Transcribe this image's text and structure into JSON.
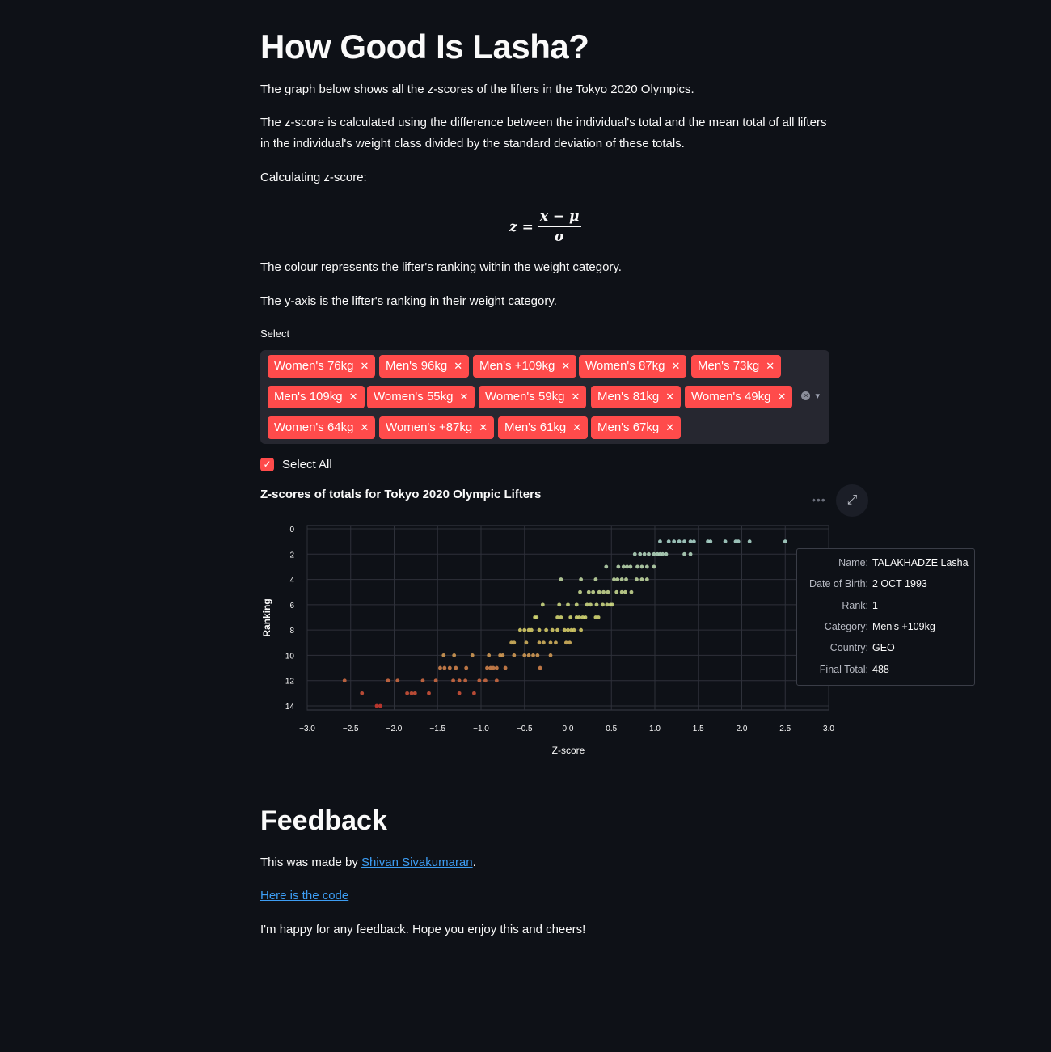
{
  "header": {
    "title": "How Good Is Lasha?"
  },
  "intro": {
    "p1": "The graph below shows all the z-scores of the lifters in the Tokyo 2020 Olympics.",
    "p2": "The z-score is calculated using the difference between the individual's total and the mean total of all lifters in the individual's weight class divided by the standard deviation of these totals.",
    "p3": "Calculating z-score:",
    "formula": {
      "lhs": "z =",
      "numerator": "x − μ",
      "denominator": "σ"
    },
    "p4": "The colour represents the lifter's ranking within the weight category.",
    "p5": "The y-axis is the lifter's ranking in their weight category."
  },
  "select": {
    "label": "Select",
    "tags": [
      "Women's 76kg",
      "Men's 96kg",
      "Men's +109kg",
      "Women's 87kg",
      "Men's 73kg",
      "Men's 109kg",
      "Women's 55kg",
      "Women's 59kg",
      "Men's 81kg",
      "Women's 49kg",
      "Women's 64kg",
      "Women's +87kg",
      "Men's 61kg",
      "Men's 67kg"
    ],
    "remove_glyph": "✕",
    "clear_glyph": "×",
    "dropdown_glyph": "▾"
  },
  "select_all": {
    "label": "Select All",
    "checked": true,
    "check_glyph": "✓"
  },
  "chart_header": {
    "menu_glyph": "•••",
    "expand_glyph": "⤢"
  },
  "chart_data": {
    "type": "scatter",
    "title": "Z-scores of totals for Tokyo 2020 Olympic Lifters",
    "xlabel": "Z-score",
    "ylabel": "Ranking",
    "xlim": [
      -3.0,
      3.0
    ],
    "ylim": [
      0,
      14
    ],
    "y_reversed": true,
    "x_ticks": [
      "−3.0",
      "−2.5",
      "−2.0",
      "−1.5",
      "−1.0",
      "−0.5",
      "0.0",
      "0.5",
      "1.0",
      "1.5",
      "2.0",
      "2.5",
      "3.0"
    ],
    "y_ticks": [
      "0",
      "2",
      "4",
      "6",
      "8",
      "10",
      "12",
      "14"
    ],
    "grid": true,
    "color_scale": {
      "low_rank": "#a9d3c8",
      "mid_rank": "#d3d46a",
      "high_rank": "#c8392f"
    },
    "points": [
      {
        "x": 1.06,
        "y": 1
      },
      {
        "x": 1.16,
        "y": 1
      },
      {
        "x": 1.22,
        "y": 1
      },
      {
        "x": 1.28,
        "y": 1
      },
      {
        "x": 1.34,
        "y": 1
      },
      {
        "x": 1.41,
        "y": 1
      },
      {
        "x": 1.45,
        "y": 1
      },
      {
        "x": 1.61,
        "y": 1
      },
      {
        "x": 1.64,
        "y": 1
      },
      {
        "x": 1.81,
        "y": 1
      },
      {
        "x": 1.93,
        "y": 1
      },
      {
        "x": 1.96,
        "y": 1
      },
      {
        "x": 2.09,
        "y": 1
      },
      {
        "x": 2.5,
        "y": 1
      },
      {
        "x": 0.77,
        "y": 2
      },
      {
        "x": 0.83,
        "y": 2
      },
      {
        "x": 0.88,
        "y": 2
      },
      {
        "x": 0.93,
        "y": 2
      },
      {
        "x": 0.99,
        "y": 2
      },
      {
        "x": 1.03,
        "y": 2
      },
      {
        "x": 1.06,
        "y": 2
      },
      {
        "x": 1.09,
        "y": 2
      },
      {
        "x": 1.13,
        "y": 2
      },
      {
        "x": 1.34,
        "y": 2
      },
      {
        "x": 1.41,
        "y": 2
      },
      {
        "x": 0.44,
        "y": 3
      },
      {
        "x": 0.58,
        "y": 3
      },
      {
        "x": 0.64,
        "y": 3
      },
      {
        "x": 0.68,
        "y": 3
      },
      {
        "x": 0.72,
        "y": 3
      },
      {
        "x": 0.8,
        "y": 3
      },
      {
        "x": 0.85,
        "y": 3
      },
      {
        "x": 0.91,
        "y": 3
      },
      {
        "x": 0.99,
        "y": 3
      },
      {
        "x": -0.08,
        "y": 4
      },
      {
        "x": 0.15,
        "y": 4
      },
      {
        "x": 0.32,
        "y": 4
      },
      {
        "x": 0.53,
        "y": 4
      },
      {
        "x": 0.57,
        "y": 4
      },
      {
        "x": 0.62,
        "y": 4
      },
      {
        "x": 0.67,
        "y": 4
      },
      {
        "x": 0.79,
        "y": 4
      },
      {
        "x": 0.85,
        "y": 4
      },
      {
        "x": 0.91,
        "y": 4
      },
      {
        "x": 0.14,
        "y": 5
      },
      {
        "x": 0.24,
        "y": 5
      },
      {
        "x": 0.29,
        "y": 5
      },
      {
        "x": 0.36,
        "y": 5
      },
      {
        "x": 0.41,
        "y": 5
      },
      {
        "x": 0.46,
        "y": 5
      },
      {
        "x": 0.56,
        "y": 5
      },
      {
        "x": 0.62,
        "y": 5
      },
      {
        "x": 0.66,
        "y": 5
      },
      {
        "x": 0.73,
        "y": 5
      },
      {
        "x": -0.29,
        "y": 6
      },
      {
        "x": -0.1,
        "y": 6
      },
      {
        "x": 0.0,
        "y": 6
      },
      {
        "x": 0.1,
        "y": 6
      },
      {
        "x": 0.22,
        "y": 6
      },
      {
        "x": 0.26,
        "y": 6
      },
      {
        "x": 0.33,
        "y": 6
      },
      {
        "x": 0.4,
        "y": 6
      },
      {
        "x": 0.45,
        "y": 6
      },
      {
        "x": 0.49,
        "y": 6
      },
      {
        "x": 0.51,
        "y": 6
      },
      {
        "x": -0.38,
        "y": 7
      },
      {
        "x": -0.36,
        "y": 7
      },
      {
        "x": -0.12,
        "y": 7
      },
      {
        "x": -0.08,
        "y": 7
      },
      {
        "x": 0.03,
        "y": 7
      },
      {
        "x": 0.1,
        "y": 7
      },
      {
        "x": 0.13,
        "y": 7
      },
      {
        "x": 0.17,
        "y": 7
      },
      {
        "x": 0.2,
        "y": 7
      },
      {
        "x": 0.32,
        "y": 7
      },
      {
        "x": 0.35,
        "y": 7
      },
      {
        "x": -0.55,
        "y": 8
      },
      {
        "x": -0.5,
        "y": 8
      },
      {
        "x": -0.45,
        "y": 8
      },
      {
        "x": -0.42,
        "y": 8
      },
      {
        "x": -0.33,
        "y": 8
      },
      {
        "x": -0.25,
        "y": 8
      },
      {
        "x": -0.18,
        "y": 8
      },
      {
        "x": -0.12,
        "y": 8
      },
      {
        "x": -0.04,
        "y": 8
      },
      {
        "x": 0.0,
        "y": 8
      },
      {
        "x": 0.04,
        "y": 8
      },
      {
        "x": 0.07,
        "y": 8
      },
      {
        "x": 0.15,
        "y": 8
      },
      {
        "x": -0.65,
        "y": 9
      },
      {
        "x": -0.62,
        "y": 9
      },
      {
        "x": -0.48,
        "y": 9
      },
      {
        "x": -0.33,
        "y": 9
      },
      {
        "x": -0.28,
        "y": 9
      },
      {
        "x": -0.2,
        "y": 9
      },
      {
        "x": -0.14,
        "y": 9
      },
      {
        "x": -0.02,
        "y": 9
      },
      {
        "x": 0.02,
        "y": 9
      },
      {
        "x": -1.43,
        "y": 10
      },
      {
        "x": -1.31,
        "y": 10
      },
      {
        "x": -1.1,
        "y": 10
      },
      {
        "x": -0.91,
        "y": 10
      },
      {
        "x": -0.78,
        "y": 10
      },
      {
        "x": -0.75,
        "y": 10
      },
      {
        "x": -0.62,
        "y": 10
      },
      {
        "x": -0.5,
        "y": 10
      },
      {
        "x": -0.45,
        "y": 10
      },
      {
        "x": -0.4,
        "y": 10
      },
      {
        "x": -0.35,
        "y": 10
      },
      {
        "x": -0.2,
        "y": 10
      },
      {
        "x": -1.47,
        "y": 11
      },
      {
        "x": -1.42,
        "y": 11
      },
      {
        "x": -1.36,
        "y": 11
      },
      {
        "x": -1.29,
        "y": 11
      },
      {
        "x": -1.17,
        "y": 11
      },
      {
        "x": -0.93,
        "y": 11
      },
      {
        "x": -0.89,
        "y": 11
      },
      {
        "x": -0.86,
        "y": 11
      },
      {
        "x": -0.82,
        "y": 11
      },
      {
        "x": -0.72,
        "y": 11
      },
      {
        "x": -0.32,
        "y": 11
      },
      {
        "x": -2.57,
        "y": 12
      },
      {
        "x": -2.07,
        "y": 12
      },
      {
        "x": -1.96,
        "y": 12
      },
      {
        "x": -1.67,
        "y": 12
      },
      {
        "x": -1.52,
        "y": 12
      },
      {
        "x": -1.32,
        "y": 12
      },
      {
        "x": -1.25,
        "y": 12
      },
      {
        "x": -1.18,
        "y": 12
      },
      {
        "x": -1.02,
        "y": 12
      },
      {
        "x": -0.95,
        "y": 12
      },
      {
        "x": -0.82,
        "y": 12
      },
      {
        "x": -2.37,
        "y": 13
      },
      {
        "x": -1.85,
        "y": 13
      },
      {
        "x": -1.8,
        "y": 13
      },
      {
        "x": -1.76,
        "y": 13
      },
      {
        "x": -1.6,
        "y": 13
      },
      {
        "x": -1.25,
        "y": 13
      },
      {
        "x": -1.08,
        "y": 13
      },
      {
        "x": -2.2,
        "y": 14
      },
      {
        "x": -2.16,
        "y": 14
      }
    ]
  },
  "tooltip": {
    "rows": [
      {
        "key": "Name:",
        "value": "TALAKHADZE Lasha"
      },
      {
        "key": "Date of Birth:",
        "value": "2 OCT 1993"
      },
      {
        "key": "Rank:",
        "value": "1"
      },
      {
        "key": "Category:",
        "value": "Men's +109kg"
      },
      {
        "key": "Country:",
        "value": "GEO"
      },
      {
        "key": "Final Total:",
        "value": "488"
      }
    ]
  },
  "feedback": {
    "title": "Feedback",
    "made_by_prefix": "This was made by ",
    "author_link": "Shivan Sivakumaran",
    "made_by_suffix": ".",
    "code_link": "Here is the code",
    "closing": "I'm happy for any feedback. Hope you enjoy this and cheers!"
  }
}
